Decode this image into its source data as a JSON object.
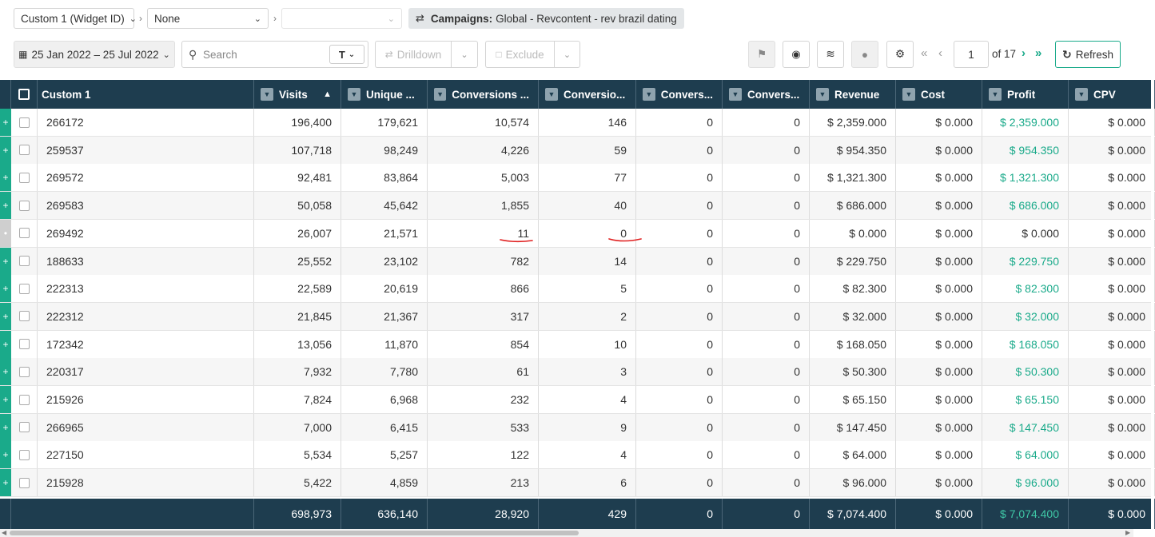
{
  "filters": {
    "group1": "Custom 1 (Widget ID)",
    "group2": "None",
    "group3": "",
    "campaign_label": "Campaigns:",
    "campaign_value": "Global - Revcontent - rev brazil dating"
  },
  "toolbar": {
    "date_range": "25 Jan 2022 – 25 Jul 2022",
    "search_placeholder": "Search",
    "text_mode": "T",
    "drilldown_label": "Drilldown",
    "exclude_label": "Exclude",
    "page_current": "1",
    "page_total_text": "of 17",
    "refresh_label": "Refresh"
  },
  "table": {
    "columns": [
      "Custom 1",
      "Visits",
      "Unique ...",
      "Conversions ...",
      "Conversio...",
      "Convers...",
      "Convers...",
      "Revenue",
      "Cost",
      "Profit",
      "CPV"
    ],
    "sorted_column": "Visits",
    "rows": [
      {
        "id": "266172",
        "visits": "196,400",
        "unique": "179,621",
        "conv1": "10,574",
        "conv2": "146",
        "conv3": "0",
        "conv4": "0",
        "revenue": "$ 2,359.000",
        "cost": "$ 0.000",
        "profit": "$ 2,359.000",
        "cpv": "$ 0.000"
      },
      {
        "id": "259537",
        "visits": "107,718",
        "unique": "98,249",
        "conv1": "4,226",
        "conv2": "59",
        "conv3": "0",
        "conv4": "0",
        "revenue": "$ 954.350",
        "cost": "$ 0.000",
        "profit": "$ 954.350",
        "cpv": "$ 0.000"
      },
      {
        "id": "269572",
        "visits": "92,481",
        "unique": "83,864",
        "conv1": "5,003",
        "conv2": "77",
        "conv3": "0",
        "conv4": "0",
        "revenue": "$ 1,321.300",
        "cost": "$ 0.000",
        "profit": "$ 1,321.300",
        "cpv": "$ 0.000"
      },
      {
        "id": "269583",
        "visits": "50,058",
        "unique": "45,642",
        "conv1": "1,855",
        "conv2": "40",
        "conv3": "0",
        "conv4": "0",
        "revenue": "$ 686.000",
        "cost": "$ 0.000",
        "profit": "$ 686.000",
        "cpv": "$ 0.000"
      },
      {
        "id": "269492",
        "visits": "26,007",
        "unique": "21,571",
        "conv1": "11",
        "conv2": "0",
        "conv3": "0",
        "conv4": "0",
        "revenue": "$ 0.000",
        "cost": "$ 0.000",
        "profit": "$ 0.000",
        "cpv": "$ 0.000"
      },
      {
        "id": "188633",
        "visits": "25,552",
        "unique": "23,102",
        "conv1": "782",
        "conv2": "14",
        "conv3": "0",
        "conv4": "0",
        "revenue": "$ 229.750",
        "cost": "$ 0.000",
        "profit": "$ 229.750",
        "cpv": "$ 0.000"
      },
      {
        "id": "222313",
        "visits": "22,589",
        "unique": "20,619",
        "conv1": "866",
        "conv2": "5",
        "conv3": "0",
        "conv4": "0",
        "revenue": "$ 82.300",
        "cost": "$ 0.000",
        "profit": "$ 82.300",
        "cpv": "$ 0.000"
      },
      {
        "id": "222312",
        "visits": "21,845",
        "unique": "21,367",
        "conv1": "317",
        "conv2": "2",
        "conv3": "0",
        "conv4": "0",
        "revenue": "$ 32.000",
        "cost": "$ 0.000",
        "profit": "$ 32.000",
        "cpv": "$ 0.000"
      },
      {
        "id": "172342",
        "visits": "13,056",
        "unique": "11,870",
        "conv1": "854",
        "conv2": "10",
        "conv3": "0",
        "conv4": "0",
        "revenue": "$ 168.050",
        "cost": "$ 0.000",
        "profit": "$ 168.050",
        "cpv": "$ 0.000"
      },
      {
        "id": "220317",
        "visits": "7,932",
        "unique": "7,780",
        "conv1": "61",
        "conv2": "3",
        "conv3": "0",
        "conv4": "0",
        "revenue": "$ 50.300",
        "cost": "$ 0.000",
        "profit": "$ 50.300",
        "cpv": "$ 0.000"
      },
      {
        "id": "215926",
        "visits": "7,824",
        "unique": "6,968",
        "conv1": "232",
        "conv2": "4",
        "conv3": "0",
        "conv4": "0",
        "revenue": "$ 65.150",
        "cost": "$ 0.000",
        "profit": "$ 65.150",
        "cpv": "$ 0.000"
      },
      {
        "id": "266965",
        "visits": "7,000",
        "unique": "6,415",
        "conv1": "533",
        "conv2": "9",
        "conv3": "0",
        "conv4": "0",
        "revenue": "$ 147.450",
        "cost": "$ 0.000",
        "profit": "$ 147.450",
        "cpv": "$ 0.000"
      },
      {
        "id": "227150",
        "visits": "5,534",
        "unique": "5,257",
        "conv1": "122",
        "conv2": "4",
        "conv3": "0",
        "conv4": "0",
        "revenue": "$ 64.000",
        "cost": "$ 0.000",
        "profit": "$ 64.000",
        "cpv": "$ 0.000"
      },
      {
        "id": "215928",
        "visits": "5,422",
        "unique": "4,859",
        "conv1": "213",
        "conv2": "6",
        "conv3": "0",
        "conv4": "0",
        "revenue": "$ 96.000",
        "cost": "$ 0.000",
        "profit": "$ 96.000",
        "cpv": "$ 0.000"
      }
    ],
    "totals": {
      "visits": "698,973",
      "unique": "636,140",
      "conv1": "28,920",
      "conv2": "429",
      "conv3": "0",
      "conv4": "0",
      "revenue": "$ 7,074.400",
      "cost": "$ 0.000",
      "profit": "$ 7,074.400",
      "cpv": "$ 0.000"
    }
  },
  "colors": {
    "header_bg": "#1e3d4f",
    "accent": "#1aaa8a",
    "annotation": "#e02020"
  },
  "icons": [
    "chevron-down-icon",
    "shuffle-icon",
    "calendar-icon",
    "search-icon",
    "flag-icon",
    "eye-icon",
    "chart-icon",
    "comment-icon",
    "gear-icon",
    "first-page-icon",
    "prev-page-icon",
    "next-page-icon",
    "last-page-icon",
    "refresh-icon",
    "filter-icon",
    "sort-asc-icon",
    "expand-icon"
  ]
}
